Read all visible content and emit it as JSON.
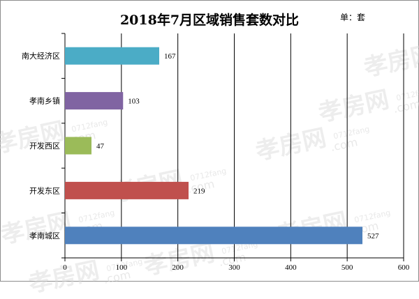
{
  "chart_data": {
    "type": "bar",
    "orientation": "horizontal",
    "title": "2018年7月区域销售套数对比",
    "unit_note": "单：套",
    "categories": [
      "南大经济区",
      "孝南乡镇",
      "开发西区",
      "开发东区",
      "孝南城区"
    ],
    "values": [
      167,
      103,
      47,
      219,
      527
    ],
    "colors": [
      "#4bacc6",
      "#8064a2",
      "#9bbb59",
      "#c0504d",
      "#4f81bd"
    ],
    "xlim": [
      0,
      600
    ],
    "xticks": [
      0,
      100,
      200,
      300,
      400,
      500,
      600
    ],
    "grid": "vertical",
    "data_labels": true
  },
  "watermark": {
    "text": "孝房网",
    "subtext": "0712fang",
    "domain_text": ".com"
  }
}
